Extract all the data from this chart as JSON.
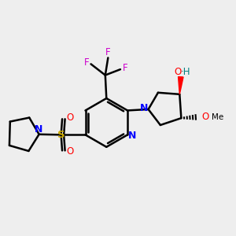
{
  "bg_color": "#eeeeee",
  "bond_color": "#000000",
  "bond_width": 1.8,
  "N_color": "#0000ff",
  "O_color": "#ff0000",
  "S_color": "#ccaa00",
  "F_color": "#cc00cc",
  "teal_color": "#008080",
  "figsize": [
    3.0,
    3.0
  ],
  "dpi": 100,
  "xlim": [
    0,
    10
  ],
  "ylim": [
    0,
    10
  ]
}
